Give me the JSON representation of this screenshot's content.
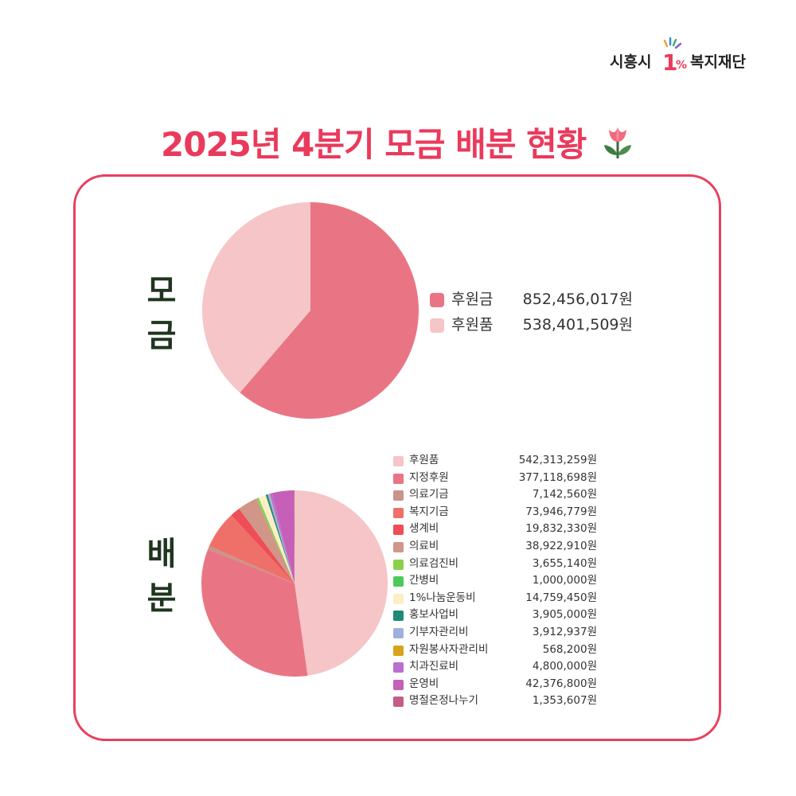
{
  "logo": {
    "left_text": "시흥시",
    "mark_text": "1",
    "mark_suffix": "%",
    "right_text": "복지재단"
  },
  "title": "2025년 4분기 모금 배분 현황",
  "chart_data": [
    {
      "type": "pie",
      "section_label": "모금",
      "categories": [
        "후원금",
        "후원품"
      ],
      "values": [
        852456017,
        538401509
      ],
      "value_labels": [
        "852,456,017원",
        "538,401,509원"
      ],
      "colors": [
        "#e97584",
        "#f5c5c7"
      ],
      "legend_position": "right"
    },
    {
      "type": "pie",
      "section_label": "배분",
      "categories": [
        "후원품",
        "지정후원",
        "의료기금",
        "복지기금",
        "생계비",
        "의료비",
        "의료검진비",
        "간병비",
        "1%나눔운동비",
        "홍보사업비",
        "기부자관리비",
        "자원봉사자관리비",
        "치과진료비",
        "운영비",
        "명절온정나누기"
      ],
      "values": [
        542313259,
        377118698,
        7142560,
        73946779,
        19832330,
        38922910,
        3655140,
        1000000,
        14759450,
        3905000,
        3912937,
        568200,
        4800000,
        42376800,
        1353607
      ],
      "value_labels": [
        "542,313,259원",
        "377,118,698원",
        "7,142,560원",
        "73,946,779원",
        "19,832,330원",
        "38,922,910원",
        "3,655,140원",
        "1,000,000원",
        "14,759,450원",
        "3,905,000원",
        "3,912,937원",
        "568,200원",
        "4,800,000원",
        "42,376,800원",
        "1,353,607원"
      ],
      "colors": [
        "#f5c5c7",
        "#e97584",
        "#c9948a",
        "#ee7068",
        "#ef4d57",
        "#d19687",
        "#8bd04a",
        "#4bc95a",
        "#fbefc6",
        "#1f8a74",
        "#9eb0dc",
        "#d9a319",
        "#b96fd0",
        "#c65fb7",
        "#c35c86"
      ],
      "legend_position": "right"
    }
  ]
}
